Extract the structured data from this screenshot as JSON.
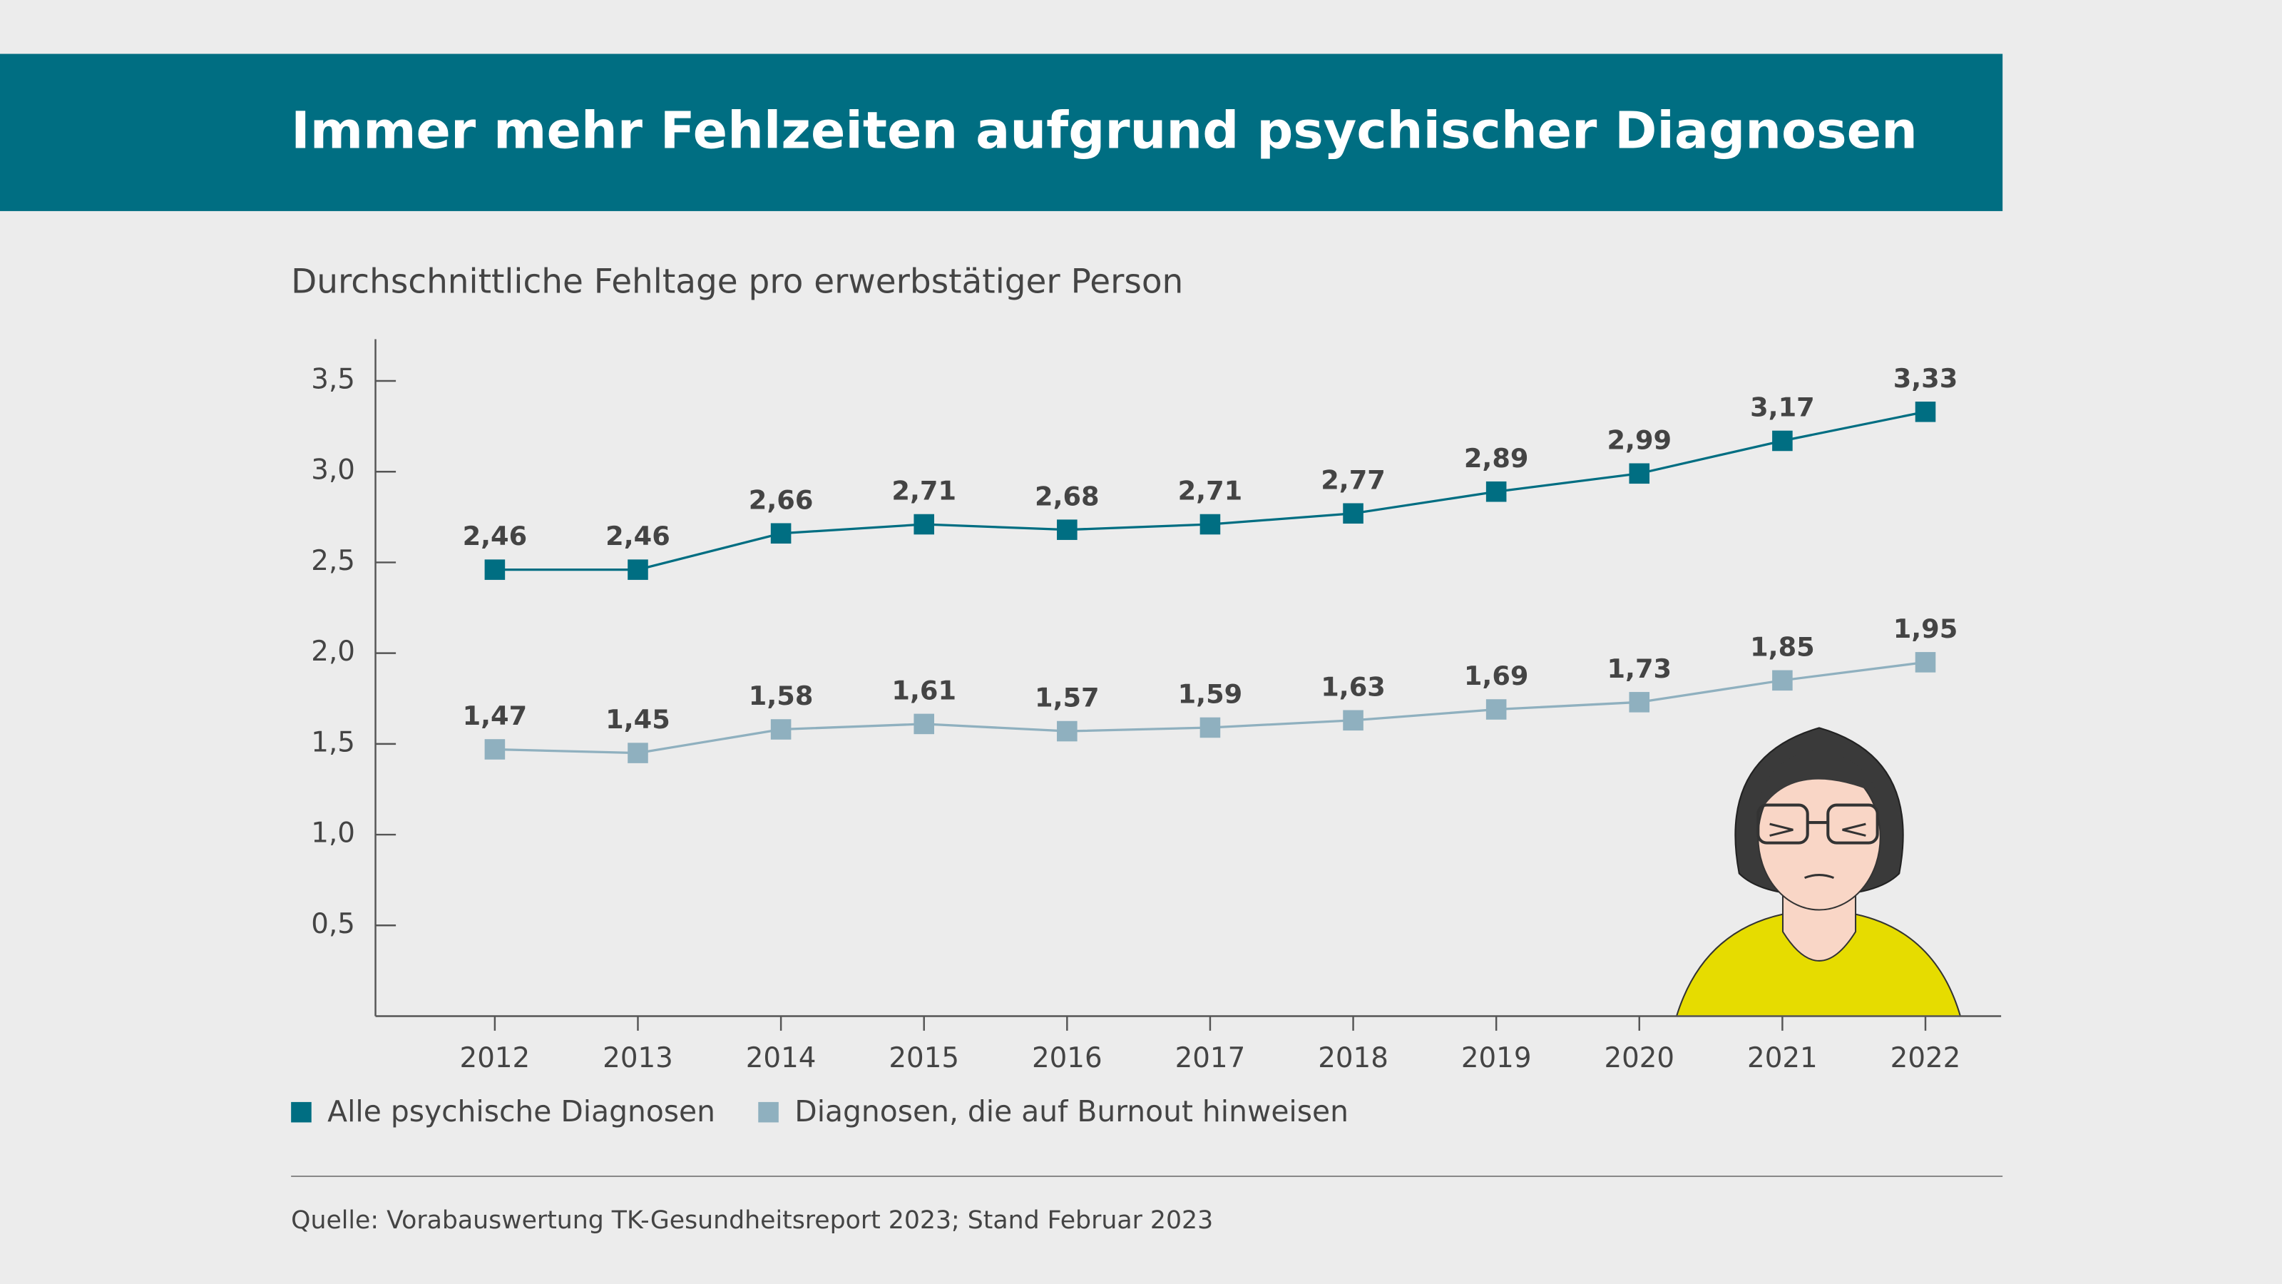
{
  "chart_data": {
    "type": "line",
    "title": "Immer mehr Fehlzeiten aufgrund psychischer Diagnosen",
    "subtitle": "Durchschnittliche Fehltage pro erwerbstätiger Person",
    "source": "Quelle: Vorabauswertung TK-Gesundheitsreport 2023; Stand Februar 2023",
    "categories": [
      "2012",
      "2013",
      "2014",
      "2015",
      "2016",
      "2017",
      "2018",
      "2019",
      "2020",
      "2021",
      "2022"
    ],
    "series": [
      {
        "name": "Alle psychische Diagnosen",
        "color": "#006e82",
        "values": [
          2.46,
          2.46,
          2.66,
          2.71,
          2.68,
          2.71,
          2.77,
          2.89,
          2.99,
          3.17,
          3.33
        ],
        "value_labels": [
          "2,46",
          "2,46",
          "2,66",
          "2,71",
          "2,68",
          "2,71",
          "2,77",
          "2,89",
          "2,99",
          "3,17",
          "3,33"
        ]
      },
      {
        "name": "Diagnosen, die auf Burnout hinweisen",
        "color": "#8fb0bf",
        "values": [
          1.47,
          1.45,
          1.58,
          1.61,
          1.57,
          1.59,
          1.63,
          1.69,
          1.73,
          1.85,
          1.95
        ],
        "value_labels": [
          "1,47",
          "1,45",
          "1,58",
          "1,61",
          "1,57",
          "1,59",
          "1,63",
          "1,69",
          "1,73",
          "1,85",
          "1,95"
        ]
      }
    ],
    "ylim": [
      0,
      3.73
    ],
    "yticks": [
      {
        "value": 0.5,
        "label": "0,5"
      },
      {
        "value": 1,
        "label": "1,0"
      },
      {
        "value": 1.5,
        "label": "1,5"
      },
      {
        "value": 2,
        "label": "2,0"
      },
      {
        "value": 2.5,
        "label": "2,5"
      },
      {
        "value": 3,
        "label": "3,0"
      },
      {
        "value": 3.5,
        "label": "3,5"
      }
    ]
  }
}
